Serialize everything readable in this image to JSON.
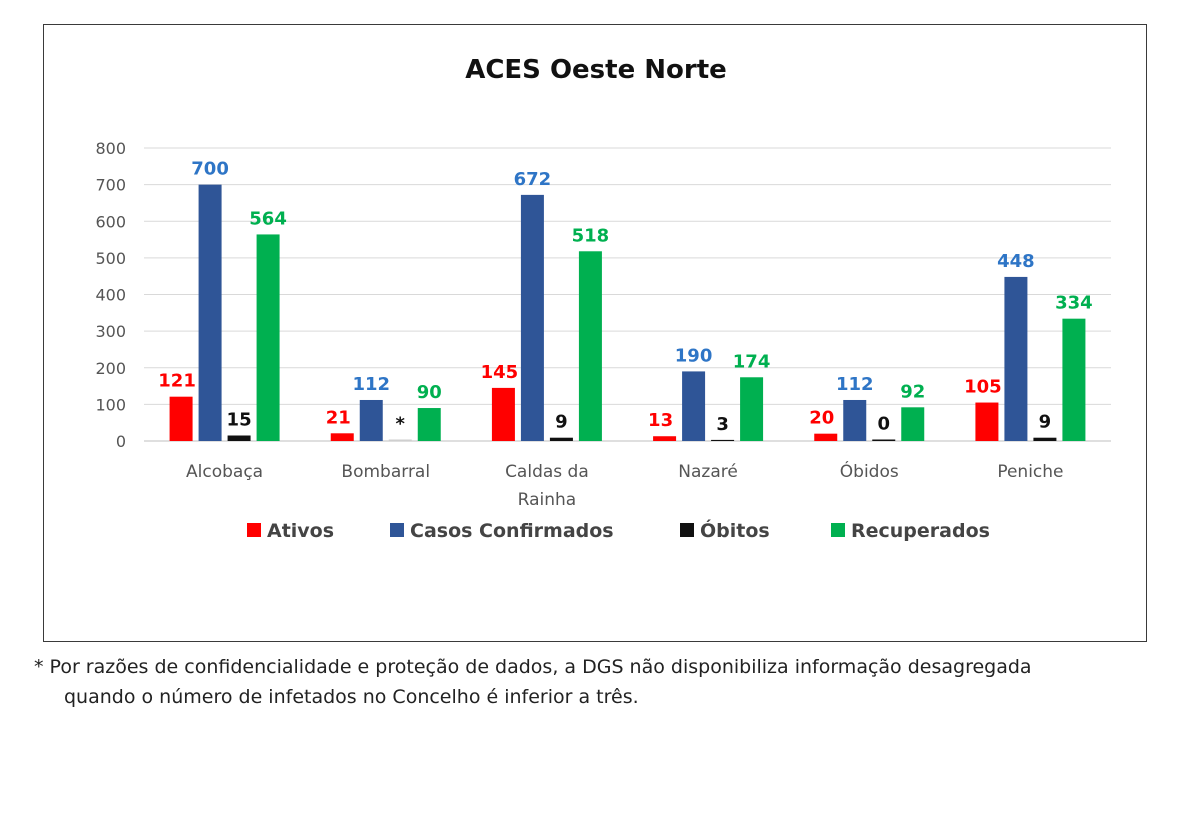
{
  "chart_data": {
    "type": "bar",
    "title": "ACES Oeste Norte",
    "categories": [
      "Alcobaça",
      "Bombarral",
      "Caldas da Rainha",
      "Nazaré",
      "Óbidos",
      "Peniche"
    ],
    "category_lines": [
      [
        "Alcobaça"
      ],
      [
        "Bombarral"
      ],
      [
        "Caldas da",
        "Rainha"
      ],
      [
        "Nazaré"
      ],
      [
        "Óbidos"
      ],
      [
        "Peniche"
      ]
    ],
    "ylim": [
      0,
      800
    ],
    "yticks": [
      0,
      100,
      200,
      300,
      400,
      500,
      600,
      700,
      800
    ],
    "grid": true,
    "legend_position": "bottom",
    "series": [
      {
        "name": "Ativos",
        "color": "#ff0000",
        "label_color": "#ff0000",
        "values": [
          121,
          21,
          145,
          13,
          20,
          105
        ],
        "labels": [
          "121",
          "21",
          "145",
          "13",
          "20",
          "105"
        ]
      },
      {
        "name": "Casos Confirmados",
        "color": "#2f5597",
        "label_color": "#2e75c6",
        "values": [
          700,
          112,
          672,
          190,
          112,
          448
        ],
        "labels": [
          "700",
          "112",
          "672",
          "190",
          "112",
          "448"
        ]
      },
      {
        "name": "Óbitos",
        "color": "#111111",
        "label_color": "#111111",
        "values": [
          15,
          null,
          9,
          3,
          0,
          9
        ],
        "labels": [
          "15",
          "*",
          "9",
          "3",
          "0",
          "9"
        ]
      },
      {
        "name": "Recuperados",
        "color": "#00b050",
        "label_color": "#00b050",
        "values": [
          564,
          90,
          518,
          174,
          92,
          334
        ],
        "labels": [
          "564",
          "90",
          "518",
          "174",
          "92",
          "334"
        ]
      }
    ]
  },
  "footnote": {
    "line1": "* Por razões de confidencialidade e proteção de dados, a DGS não disponibiliza informação desagregada",
    "line2": "quando o número de infetados no Concelho é inferior a três."
  }
}
